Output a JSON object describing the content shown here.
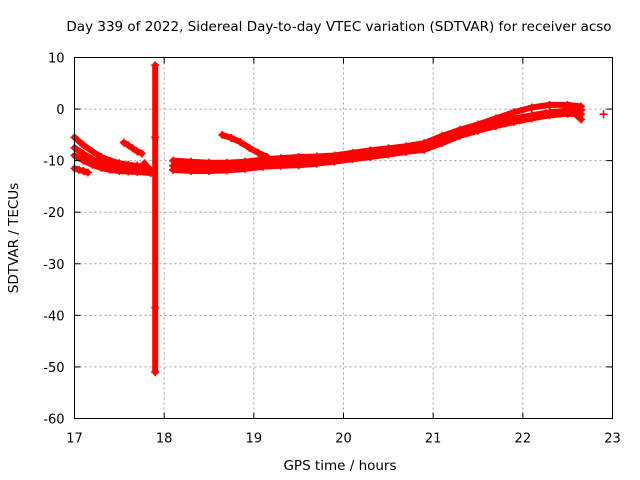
{
  "chart_data": {
    "type": "scatter",
    "title": "Day 339 of 2022, Sidereal Day-to-day VTEC variation (SDTVAR) for receiver acso",
    "xlabel": "GPS time / hours",
    "ylabel": "SDTVAR / TECUs",
    "xlim": [
      17,
      23
    ],
    "ylim": [
      -60,
      10
    ],
    "xticks": [
      "17",
      "18",
      "19",
      "20",
      "21",
      "22",
      "23"
    ],
    "yticks": [
      "10",
      "0",
      "-10",
      "-20",
      "-30",
      "-40",
      "-50",
      "-60"
    ],
    "grid": true,
    "marker": "+",
    "color": "#ff0000",
    "series": [
      {
        "name": "arc-1",
        "points": [
          [
            17.0,
            -5.5
          ],
          [
            17.1,
            -7
          ],
          [
            17.2,
            -8.2
          ],
          [
            17.3,
            -9.3
          ],
          [
            17.4,
            -10
          ],
          [
            17.5,
            -10.5
          ],
          [
            17.6,
            -10.8
          ],
          [
            17.7,
            -11
          ],
          [
            17.8,
            -11.3
          ]
        ]
      },
      {
        "name": "arc-2",
        "points": [
          [
            17.0,
            -7.5
          ],
          [
            17.1,
            -8.7
          ],
          [
            17.2,
            -9.7
          ],
          [
            17.3,
            -10.4
          ],
          [
            17.4,
            -10.8
          ],
          [
            17.5,
            -11
          ],
          [
            17.6,
            -11.2
          ],
          [
            17.7,
            -11.5
          ],
          [
            17.85,
            -11.8
          ]
        ]
      },
      {
        "name": "arc-3",
        "points": [
          [
            17.0,
            -9
          ],
          [
            17.1,
            -10
          ],
          [
            17.2,
            -10.8
          ],
          [
            17.3,
            -11.4
          ],
          [
            17.4,
            -11.8
          ],
          [
            17.5,
            -12
          ],
          [
            17.6,
            -12.1
          ],
          [
            17.7,
            -12.2
          ],
          [
            17.85,
            -12.4
          ]
        ]
      },
      {
        "name": "arc-4",
        "points": [
          [
            17.0,
            -11.5
          ],
          [
            17.05,
            -11.8
          ],
          [
            17.1,
            -12
          ],
          [
            17.15,
            -12.3
          ]
        ]
      },
      {
        "name": "arc-5",
        "points": [
          [
            17.55,
            -6.5
          ],
          [
            17.6,
            -7
          ],
          [
            17.65,
            -7.6
          ],
          [
            17.7,
            -8.2
          ],
          [
            17.75,
            -8.6
          ]
        ]
      },
      {
        "name": "arc-6",
        "points": [
          [
            17.78,
            -10.5
          ],
          [
            17.8,
            -11
          ],
          [
            17.82,
            -11.5
          ],
          [
            17.84,
            -12
          ]
        ]
      },
      {
        "name": "isolated",
        "points": [
          [
            17.9,
            8.5
          ],
          [
            17.9,
            -5.5
          ],
          [
            17.9,
            -38.5
          ],
          [
            17.9,
            -51
          ]
        ]
      },
      {
        "name": "arc-7",
        "points": [
          [
            18.1,
            -10
          ],
          [
            18.3,
            -10.2
          ],
          [
            18.5,
            -10.4
          ],
          [
            18.7,
            -10.4
          ],
          [
            18.9,
            -10.2
          ],
          [
            19.1,
            -9.8
          ],
          [
            19.3,
            -9.5
          ],
          [
            19.5,
            -9.3
          ],
          [
            19.7,
            -9.2
          ],
          [
            19.9,
            -9
          ],
          [
            20.1,
            -8.5
          ],
          [
            20.3,
            -8
          ],
          [
            20.5,
            -7.6
          ],
          [
            20.7,
            -7.2
          ],
          [
            20.9,
            -6.6
          ],
          [
            21.1,
            -5.2
          ],
          [
            21.3,
            -4
          ],
          [
            21.5,
            -3
          ],
          [
            21.7,
            -1.8
          ],
          [
            21.9,
            -0.6
          ],
          [
            22.1,
            0.3
          ],
          [
            22.3,
            0.8
          ],
          [
            22.5,
            0.8
          ],
          [
            22.65,
            0.5
          ]
        ]
      },
      {
        "name": "arc-8",
        "points": [
          [
            18.1,
            -11
          ],
          [
            18.3,
            -11.2
          ],
          [
            18.5,
            -11.3
          ],
          [
            18.7,
            -11.2
          ],
          [
            18.9,
            -10.9
          ],
          [
            19.1,
            -10.5
          ],
          [
            19.3,
            -10.2
          ],
          [
            19.5,
            -10
          ],
          [
            19.7,
            -9.8
          ],
          [
            19.9,
            -9.5
          ],
          [
            20.1,
            -9.1
          ],
          [
            20.3,
            -8.6
          ],
          [
            20.5,
            -8.2
          ],
          [
            20.7,
            -7.9
          ],
          [
            20.9,
            -7.4
          ],
          [
            21.1,
            -6
          ],
          [
            21.3,
            -4.8
          ],
          [
            21.5,
            -3.8
          ],
          [
            21.7,
            -2.8
          ],
          [
            21.9,
            -1.8
          ],
          [
            22.1,
            -1.2
          ],
          [
            22.3,
            -0.6
          ],
          [
            22.5,
            -0.3
          ],
          [
            22.65,
            -0.2
          ]
        ]
      },
      {
        "name": "arc-9",
        "points": [
          [
            18.1,
            -11.8
          ],
          [
            18.3,
            -12
          ],
          [
            18.5,
            -12
          ],
          [
            18.7,
            -11.9
          ],
          [
            18.9,
            -11.6
          ],
          [
            19.1,
            -11.2
          ],
          [
            19.3,
            -11
          ],
          [
            19.5,
            -10.9
          ],
          [
            19.7,
            -10.6
          ],
          [
            19.9,
            -10.2
          ],
          [
            20.1,
            -9.7
          ],
          [
            20.3,
            -9.3
          ],
          [
            20.5,
            -8.8
          ],
          [
            20.7,
            -8.3
          ],
          [
            20.9,
            -7.9
          ],
          [
            21.1,
            -6.6
          ],
          [
            21.3,
            -5.2
          ],
          [
            21.5,
            -4.2
          ],
          [
            21.7,
            -3.3
          ],
          [
            21.9,
            -2.5
          ],
          [
            22.1,
            -1.8
          ],
          [
            22.3,
            -1.2
          ],
          [
            22.5,
            -0.9
          ],
          [
            22.65,
            -1
          ]
        ]
      },
      {
        "name": "arc-10",
        "points": [
          [
            18.65,
            -5
          ],
          [
            18.75,
            -5.6
          ],
          [
            18.85,
            -6.4
          ],
          [
            18.95,
            -7.5
          ],
          [
            19.05,
            -8.5
          ],
          [
            19.15,
            -9.3
          ]
        ]
      },
      {
        "name": "arc-11",
        "points": [
          [
            22.55,
            -0.5
          ],
          [
            22.6,
            -1.2
          ],
          [
            22.65,
            -2
          ]
        ]
      },
      {
        "name": "arc-12",
        "points": [
          [
            22.9,
            -1
          ]
        ]
      }
    ]
  }
}
